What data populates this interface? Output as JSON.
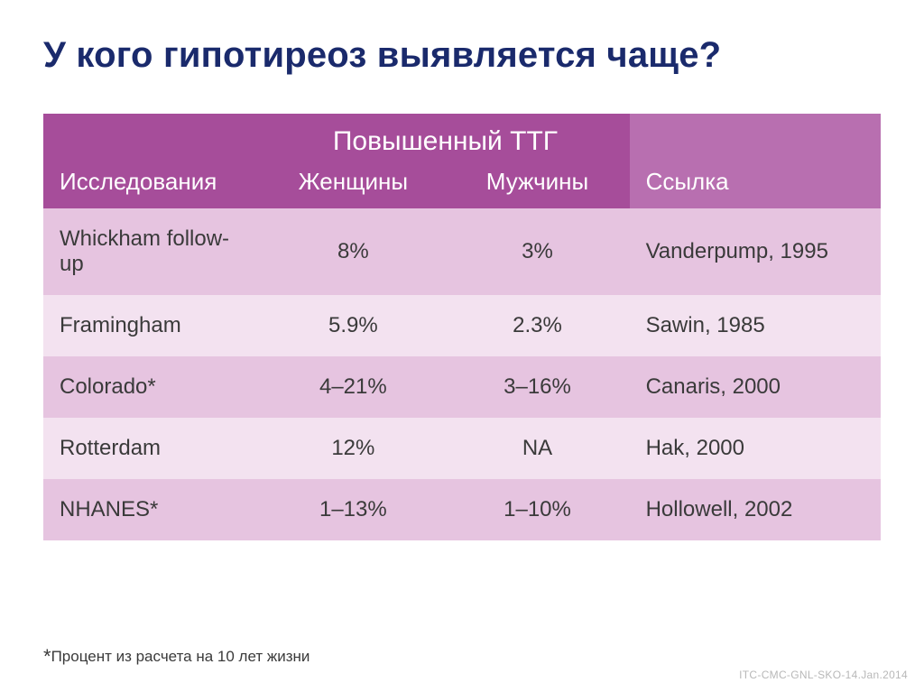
{
  "title": "У кого  гипотиреоз выявляется чаще?",
  "table": {
    "type": "table",
    "header_super": "Повышенный ТТГ",
    "columns": [
      "Исследования",
      "Женщины",
      "Мужчины",
      "Ссылка"
    ],
    "header_bg": "#a64d9a",
    "header_bg_light": "#b86fb0",
    "header_text_color": "#ffffff",
    "row_bg_odd": "#e6c4e0",
    "row_bg_even": "#f3e2f0",
    "text_color": "#3a3a3a",
    "font_size_header_super": 30,
    "font_size_header": 26,
    "font_size_body": 24,
    "col_widths_pct": [
      26,
      22,
      22,
      30
    ],
    "col_align": [
      "left",
      "center",
      "center",
      "left"
    ],
    "rows": [
      {
        "study": "Whickham follow-up",
        "women": "8%",
        "men": "3%",
        "ref": "Vanderpump, 1995"
      },
      {
        "study": "Framingham",
        "women": "5.9%",
        "men": "2.3%",
        "ref": "Sawin, 1985"
      },
      {
        "study": "Colorado*",
        "women": "4–21%",
        "men": "3–16%",
        "ref": "Canaris, 2000"
      },
      {
        "study": "Rotterdam",
        "women": "12%",
        "men": "NA",
        "ref": "Hak, 2000"
      },
      {
        "study": "NHANES*",
        "women": "1–13%",
        "men": "1–10%",
        "ref": "Hollowell, 2002"
      }
    ]
  },
  "footnote": {
    "star": "*",
    "text": "Процент из расчета на 10 лет жизни"
  },
  "slidecode": "ITC-CMC-GNL-SKO-14.Jan.2014",
  "background_color": "#ffffff",
  "title_color": "#1a2a6c"
}
